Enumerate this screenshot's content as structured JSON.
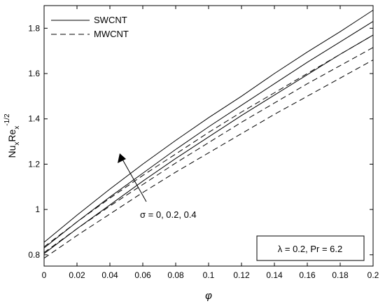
{
  "chart_data": {
    "type": "line",
    "xlabel": "φ",
    "ylabel_main": "Nu",
    "ylabel_sub1": "x",
    "ylabel_mid": "Re",
    "ylabel_sub2": "x",
    "ylabel_sup": "-1/2",
    "xlim": [
      0,
      0.2
    ],
    "ylim": [
      0.75,
      1.9
    ],
    "x_ticks": [
      "0",
      "0.02",
      "0.04",
      "0.06",
      "0.08",
      "0.1",
      "0.12",
      "0.14",
      "0.16",
      "0.18",
      "0.2"
    ],
    "y_ticks": [
      "0.8",
      "1",
      "1.2",
      "1.4",
      "1.6",
      "1.8"
    ],
    "grid": false,
    "legend_position": "top-left",
    "legend": [
      {
        "label": "SWCNT",
        "style": "solid"
      },
      {
        "label": "MWCNT",
        "style": "dashed"
      }
    ],
    "annotation_sigma": "σ = 0, 0.2, 0.4",
    "annotation_box": "λ = 0.2, Pr = 6.2",
    "x": [
      0,
      0.02,
      0.04,
      0.06,
      0.08,
      0.1,
      0.12,
      0.14,
      0.16,
      0.18,
      0.2
    ],
    "series": [
      {
        "style": "solid",
        "values": [
          0.855,
          0.975,
          1.09,
          1.2,
          1.305,
          1.405,
          1.5,
          1.6,
          1.695,
          1.785,
          1.88
        ]
      },
      {
        "style": "solid",
        "values": [
          0.83,
          0.945,
          1.055,
          1.16,
          1.265,
          1.365,
          1.46,
          1.555,
          1.65,
          1.74,
          1.83
        ]
      },
      {
        "style": "solid",
        "values": [
          0.805,
          0.915,
          1.02,
          1.125,
          1.225,
          1.32,
          1.415,
          1.505,
          1.595,
          1.685,
          1.77
        ]
      },
      {
        "style": "dashed",
        "values": [
          0.835,
          0.945,
          1.05,
          1.15,
          1.245,
          1.34,
          1.43,
          1.515,
          1.6,
          1.685,
          1.77
        ]
      },
      {
        "style": "dashed",
        "values": [
          0.81,
          0.915,
          1.015,
          1.11,
          1.205,
          1.295,
          1.385,
          1.47,
          1.555,
          1.635,
          1.715
        ]
      },
      {
        "style": "dashed",
        "values": [
          0.785,
          0.885,
          0.98,
          1.075,
          1.165,
          1.25,
          1.335,
          1.42,
          1.5,
          1.58,
          1.66
        ]
      }
    ]
  }
}
